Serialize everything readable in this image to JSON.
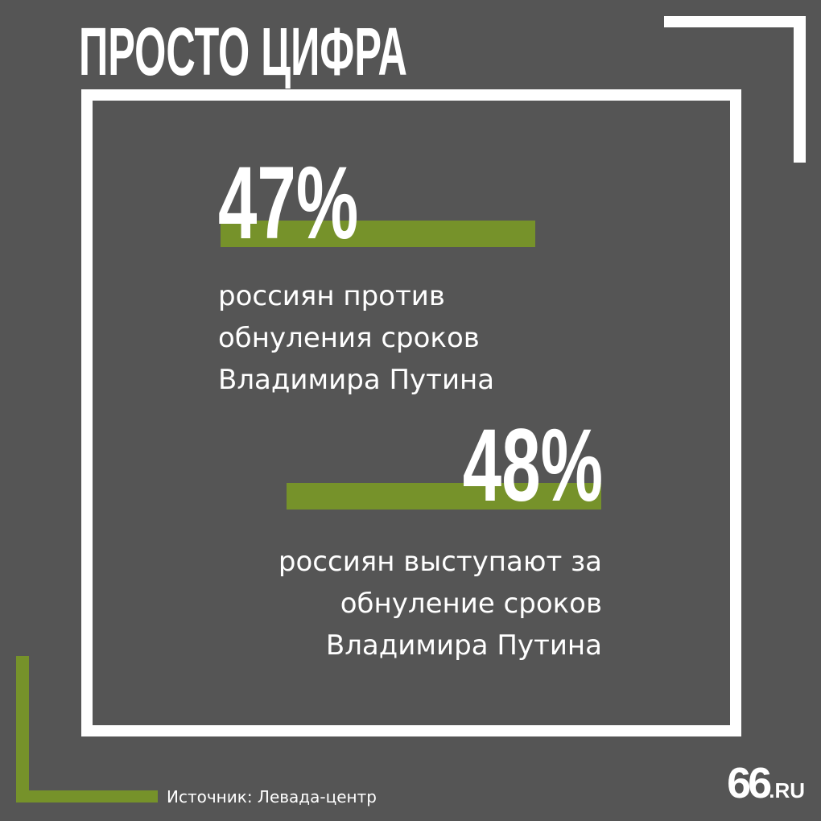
{
  "header": {
    "title": "ПРОСТО ЦИФРА"
  },
  "stats": [
    {
      "value": "47%",
      "percent": 47,
      "lines": [
        "россиян против",
        "обнуления сроков",
        "Владимира Путина"
      ]
    },
    {
      "value": "48%",
      "percent": 48,
      "lines": [
        "россиян выступают за",
        "обнуление сроков",
        "Владимира Путина"
      ]
    }
  ],
  "footer": {
    "source": "Источник: Левада-центр"
  },
  "logo": {
    "number": "66",
    "domain": ".RU"
  },
  "colors": {
    "background": "#555555",
    "accent": "#76922a",
    "frame": "#ffffff",
    "text": "#ffffff"
  }
}
